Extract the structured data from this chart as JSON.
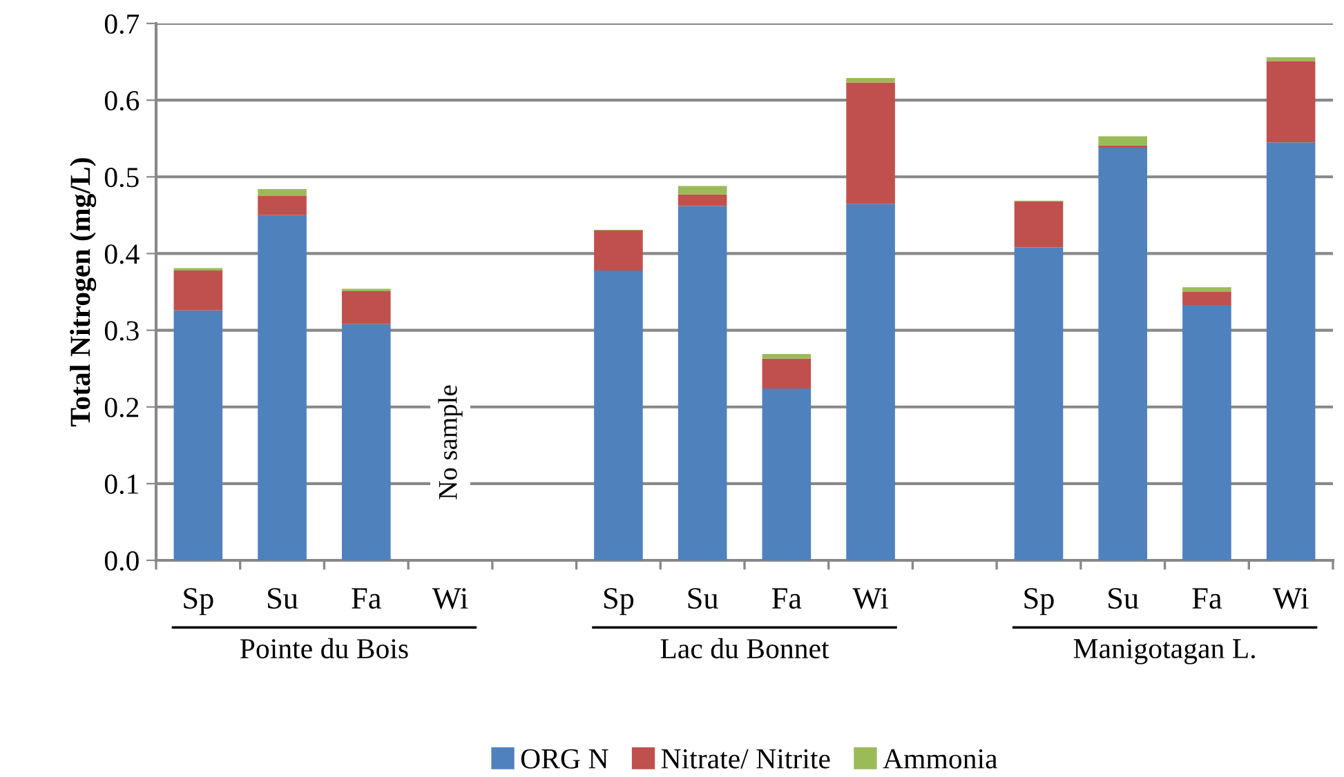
{
  "chart_data": {
    "type": "bar",
    "stacked": true,
    "ylabel": "Total Nitrogen (mg/L)",
    "categories": [
      "Sp",
      "Su",
      "Fa",
      "Wi",
      null,
      "Sp",
      "Su",
      "Fa",
      "Wi",
      null,
      "Sp",
      "Su",
      "Fa",
      "Wi"
    ],
    "series": [
      {
        "name": "ORG N",
        "color": "#4f81bd",
        "values": [
          0.326,
          0.45,
          0.308,
          null,
          null,
          0.378,
          0.462,
          0.224,
          0.465,
          null,
          0.408,
          0.538,
          0.333,
          0.545
        ]
      },
      {
        "name": "Nitrate/ Nitrite",
        "color": "#c0504d",
        "values": [
          0.052,
          0.025,
          0.043,
          null,
          null,
          0.052,
          0.015,
          0.039,
          0.158,
          null,
          0.06,
          0.003,
          0.017,
          0.106
        ]
      },
      {
        "name": "Ammonia",
        "color": "#9bbb59",
        "values": [
          0.003,
          0.009,
          0.003,
          null,
          null,
          0.001,
          0.011,
          0.006,
          0.006,
          null,
          0.001,
          0.012,
          0.006,
          0.005
        ]
      }
    ],
    "ylim": [
      0,
      0.7
    ],
    "yticks": [
      {
        "value": 0,
        "label": "0.0"
      },
      {
        "value": 0.1,
        "label": "0.1"
      },
      {
        "value": 0.2,
        "label": "0.2"
      },
      {
        "value": 0.3,
        "label": "0.3"
      },
      {
        "value": 0.4,
        "label": "0.4"
      },
      {
        "value": 0.5,
        "label": "0.5"
      },
      {
        "value": 0.6,
        "label": "0.6"
      },
      {
        "value": 0.7,
        "label": "0.7"
      }
    ],
    "grid": "y",
    "legend": "bottom",
    "annotations": [
      "Pointe du Bois",
      "Lac du Bonnet",
      "Manigotagan L.",
      "No sample"
    ]
  }
}
